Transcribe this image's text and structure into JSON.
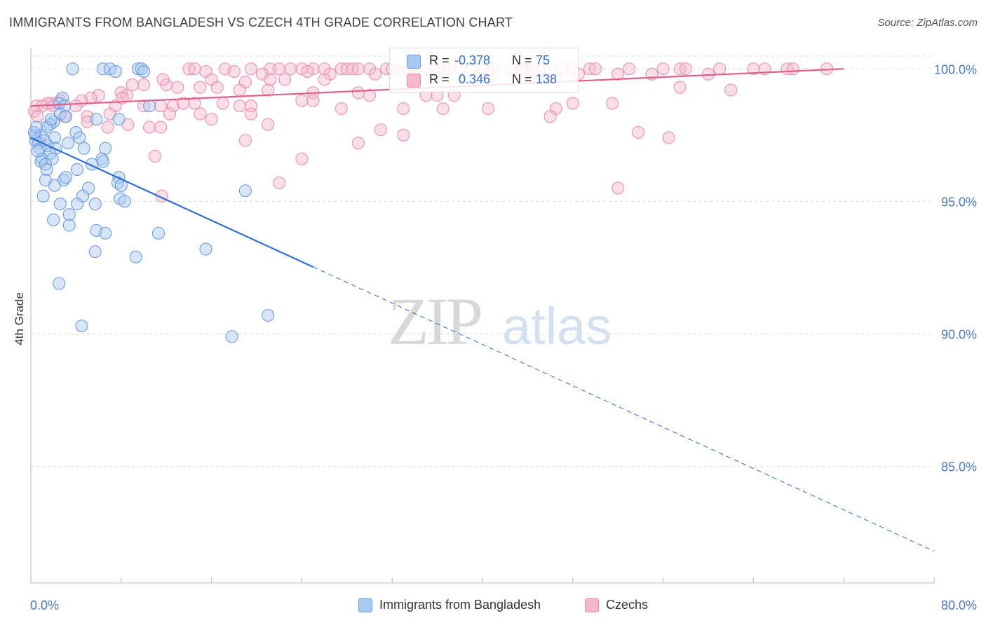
{
  "title": "IMMIGRANTS FROM BANGLADESH VS CZECH 4TH GRADE CORRELATION CHART",
  "source": "Source: ZipAtlas.com",
  "watermark": {
    "zip": "ZIP",
    "atlas": "atlas"
  },
  "colors": {
    "blue_fill": "#a9c8f2",
    "blue_stroke": "#6a9be0",
    "blue_line": "#2a6fd6",
    "pink_fill": "#f5b8cb",
    "pink_stroke": "#ec8fae",
    "pink_line": "#e0608a",
    "grid": "#dddddd",
    "tick_text": "#4a78c8"
  },
  "legend_top": {
    "rows": [
      {
        "r_label": "R =",
        "r_value": "-0.378",
        "n_label": "N =",
        "n_value": "75"
      },
      {
        "r_label": "R =",
        "r_value": "0.346",
        "n_label": "N =",
        "n_value": "138"
      }
    ]
  },
  "legend_bottom": [
    "Immigrants from Bangladesh",
    "Czechs"
  ],
  "chart_data": {
    "type": "scatter",
    "title": "IMMIGRANTS FROM BANGLADESH VS CZECH 4TH GRADE CORRELATION CHART",
    "xlabel": "",
    "ylabel": "4th Grade",
    "xlim": [
      0,
      80
    ],
    "ylim": [
      80.6,
      100.8
    ],
    "x_tick_labels": [
      "0.0%",
      "80.0%"
    ],
    "y_ticks": [
      85,
      90,
      95,
      100
    ],
    "y_tick_labels": [
      "85.0%",
      "90.0%",
      "95.0%",
      "100.0%"
    ],
    "grid": true,
    "legend_placement": "top-center",
    "series": [
      {
        "name": "Immigrants from Bangladesh",
        "R": -0.378,
        "N": 75,
        "trend": {
          "x0": 0,
          "y0": 97.4,
          "x1": 80,
          "y1": 81.8,
          "solid_until_x": 25
        },
        "points": [
          [
            3.7,
            100
          ],
          [
            6.4,
            100
          ],
          [
            7.0,
            100
          ],
          [
            9.5,
            100
          ],
          [
            9.8,
            100
          ],
          [
            7.5,
            99.9
          ],
          [
            10.0,
            99.9
          ],
          [
            2.8,
            98.9
          ],
          [
            2.5,
            98.7
          ],
          [
            3.0,
            98.6
          ],
          [
            10.5,
            98.6
          ],
          [
            2.6,
            98.3
          ],
          [
            3.1,
            98.2
          ],
          [
            5.8,
            98.1
          ],
          [
            7.8,
            98.1
          ],
          [
            2.0,
            98.0
          ],
          [
            1.7,
            97.9
          ],
          [
            1.4,
            97.8
          ],
          [
            0.4,
            97.5
          ],
          [
            0.9,
            97.5
          ],
          [
            4.0,
            97.6
          ],
          [
            4.3,
            97.4
          ],
          [
            2.1,
            97.4
          ],
          [
            0.4,
            97.3
          ],
          [
            0.7,
            97.2
          ],
          [
            1.5,
            97.1
          ],
          [
            0.8,
            97.0
          ],
          [
            2.2,
            97.0
          ],
          [
            4.7,
            97.0
          ],
          [
            6.6,
            97.0
          ],
          [
            1.7,
            96.8
          ],
          [
            1.0,
            96.6
          ],
          [
            1.9,
            96.6
          ],
          [
            6.3,
            96.6
          ],
          [
            6.4,
            96.5
          ],
          [
            0.9,
            96.5
          ],
          [
            1.3,
            96.4
          ],
          [
            5.4,
            96.4
          ],
          [
            1.4,
            96.2
          ],
          [
            4.1,
            96.2
          ],
          [
            7.8,
            95.9
          ],
          [
            1.3,
            95.8
          ],
          [
            2.9,
            95.8
          ],
          [
            3.1,
            95.9
          ],
          [
            7.7,
            95.7
          ],
          [
            8.0,
            95.6
          ],
          [
            2.1,
            95.6
          ],
          [
            5.1,
            95.5
          ],
          [
            19.0,
            95.4
          ],
          [
            1.1,
            95.2
          ],
          [
            4.6,
            95.2
          ],
          [
            7.9,
            95.1
          ],
          [
            8.3,
            95.0
          ],
          [
            5.7,
            94.9
          ],
          [
            2.6,
            94.9
          ],
          [
            4.1,
            94.9
          ],
          [
            3.4,
            94.5
          ],
          [
            2.0,
            94.3
          ],
          [
            3.4,
            94.1
          ],
          [
            5.8,
            93.9
          ],
          [
            6.6,
            93.8
          ],
          [
            11.3,
            93.8
          ],
          [
            5.7,
            93.1
          ],
          [
            9.3,
            92.9
          ],
          [
            15.5,
            93.2
          ],
          [
            2.5,
            91.9
          ],
          [
            21.0,
            90.7
          ],
          [
            4.5,
            90.3
          ],
          [
            17.8,
            89.9
          ],
          [
            0.3,
            97.6
          ],
          [
            1.2,
            97.3
          ],
          [
            0.6,
            96.9
          ],
          [
            1.8,
            98.1
          ],
          [
            0.5,
            97.8
          ],
          [
            3.3,
            97.2
          ]
        ]
      },
      {
        "name": "Czechs",
        "R": 0.346,
        "N": 138,
        "trend": {
          "x0": 0,
          "y0": 98.6,
          "x1": 72,
          "y1": 100.0
        },
        "points": [
          [
            14.0,
            100
          ],
          [
            14.5,
            100
          ],
          [
            17.2,
            100
          ],
          [
            19.5,
            100
          ],
          [
            21.2,
            100
          ],
          [
            22.0,
            100
          ],
          [
            23.0,
            100
          ],
          [
            24.0,
            100
          ],
          [
            25.0,
            100
          ],
          [
            26.0,
            100
          ],
          [
            27.5,
            100
          ],
          [
            28.0,
            100
          ],
          [
            28.5,
            100
          ],
          [
            29.0,
            100
          ],
          [
            30.0,
            100
          ],
          [
            31.5,
            100
          ],
          [
            32.0,
            100
          ],
          [
            33.5,
            100
          ],
          [
            34.0,
            100
          ],
          [
            35.0,
            100
          ],
          [
            36.5,
            100
          ],
          [
            37.0,
            100
          ],
          [
            38.0,
            100
          ],
          [
            39.0,
            100
          ],
          [
            40.0,
            100
          ],
          [
            41.0,
            100
          ],
          [
            42.5,
            100
          ],
          [
            43.5,
            100
          ],
          [
            44.0,
            100
          ],
          [
            46.0,
            100
          ],
          [
            47.0,
            100
          ],
          [
            48.0,
            100
          ],
          [
            49.5,
            100
          ],
          [
            50.0,
            100
          ],
          [
            53.0,
            100
          ],
          [
            56.0,
            100
          ],
          [
            57.5,
            100
          ],
          [
            58.0,
            100
          ],
          [
            61.0,
            100
          ],
          [
            64.0,
            100
          ],
          [
            65.0,
            100
          ],
          [
            67.0,
            100
          ],
          [
            67.5,
            100
          ],
          [
            70.5,
            100
          ],
          [
            15.5,
            99.9
          ],
          [
            18.0,
            99.9
          ],
          [
            20.5,
            99.8
          ],
          [
            24.5,
            99.9
          ],
          [
            26.5,
            99.8
          ],
          [
            30.5,
            99.8
          ],
          [
            32.5,
            99.9
          ],
          [
            36.0,
            99.8
          ],
          [
            40.5,
            99.8
          ],
          [
            44.5,
            99.9
          ],
          [
            48.5,
            99.8
          ],
          [
            52.0,
            99.8
          ],
          [
            55.0,
            99.8
          ],
          [
            60.0,
            99.8
          ],
          [
            16.0,
            99.6
          ],
          [
            19.0,
            99.5
          ],
          [
            22.5,
            99.6
          ],
          [
            26.0,
            99.6
          ],
          [
            9.0,
            99.4
          ],
          [
            10.0,
            99.4
          ],
          [
            12.0,
            99.4
          ],
          [
            13.0,
            99.3
          ],
          [
            15.0,
            99.3
          ],
          [
            16.5,
            99.3
          ],
          [
            18.5,
            99.2
          ],
          [
            21.0,
            99.2
          ],
          [
            25.0,
            99.1
          ],
          [
            29.0,
            99.1
          ],
          [
            30.0,
            99.0
          ],
          [
            35.0,
            99.0
          ],
          [
            36.0,
            99.0
          ],
          [
            37.5,
            99.0
          ],
          [
            8.0,
            99.1
          ],
          [
            8.5,
            99.0
          ],
          [
            6.0,
            99.0
          ],
          [
            5.3,
            98.9
          ],
          [
            4.5,
            98.8
          ],
          [
            2.6,
            98.8
          ],
          [
            1.8,
            98.7
          ],
          [
            1.5,
            98.7
          ],
          [
            0.5,
            98.6
          ],
          [
            1.0,
            98.6
          ],
          [
            2.0,
            98.6
          ],
          [
            4.0,
            98.6
          ],
          [
            7.5,
            98.6
          ],
          [
            10.0,
            98.6
          ],
          [
            11.5,
            98.6
          ],
          [
            12.6,
            98.6
          ],
          [
            13.5,
            98.7
          ],
          [
            14.5,
            98.7
          ],
          [
            17.0,
            98.7
          ],
          [
            18.5,
            98.6
          ],
          [
            19.5,
            98.6
          ],
          [
            24.0,
            98.8
          ],
          [
            25.0,
            98.8
          ],
          [
            27.5,
            98.5
          ],
          [
            33.0,
            98.5
          ],
          [
            36.5,
            98.5
          ],
          [
            40.5,
            98.5
          ],
          [
            46.5,
            98.5
          ],
          [
            48.0,
            98.7
          ],
          [
            51.5,
            98.7
          ],
          [
            7.0,
            98.3
          ],
          [
            12.3,
            98.3
          ],
          [
            15.0,
            98.3
          ],
          [
            19.5,
            98.3
          ],
          [
            3.0,
            98.2
          ],
          [
            5.0,
            98.2
          ],
          [
            16.0,
            98.1
          ],
          [
            46.0,
            98.2
          ],
          [
            5.0,
            98.0
          ],
          [
            8.6,
            97.9
          ],
          [
            10.5,
            97.8
          ],
          [
            6.8,
            97.8
          ],
          [
            11.5,
            97.8
          ],
          [
            21.0,
            97.9
          ],
          [
            31.0,
            97.7
          ],
          [
            33.0,
            97.5
          ],
          [
            53.8,
            97.6
          ],
          [
            56.5,
            97.4
          ],
          [
            19.0,
            97.3
          ],
          [
            29.0,
            97.2
          ],
          [
            11.0,
            96.7
          ],
          [
            24.0,
            96.6
          ],
          [
            22.0,
            95.7
          ],
          [
            52.0,
            95.5
          ],
          [
            11.6,
            95.2
          ],
          [
            57.5,
            99.3
          ],
          [
            62.0,
            99.2
          ],
          [
            0.3,
            98.4
          ],
          [
            0.6,
            98.2
          ],
          [
            21.2,
            99.6
          ],
          [
            11.7,
            99.6
          ],
          [
            8.1,
            98.9
          ]
        ]
      }
    ]
  }
}
